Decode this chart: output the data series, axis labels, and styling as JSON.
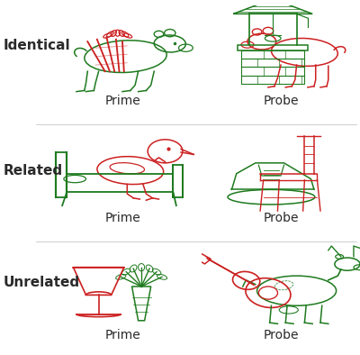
{
  "background_color": "#ffffff",
  "row_labels": [
    "Identical",
    "Related",
    "Unrelated"
  ],
  "row_label_fontsize": 11,
  "row_label_fontweight": "bold",
  "col_labels": [
    "Prime",
    "Probe"
  ],
  "col_label_fontsize": 10,
  "green_color": "#1e7a1e",
  "red_color": "#cc2020",
  "text_color": "#2a2a2a",
  "figsize": [
    4.0,
    3.94
  ],
  "dpi": 100,
  "cell_positions": {
    "r0c0": [
      0.12,
      0.685,
      0.44,
      0.3
    ],
    "r0c1": [
      0.56,
      0.685,
      0.44,
      0.3
    ],
    "r1c0": [
      0.12,
      0.355,
      0.44,
      0.3
    ],
    "r1c1": [
      0.56,
      0.355,
      0.44,
      0.3
    ],
    "r2c0": [
      0.12,
      0.025,
      0.44,
      0.3
    ],
    "r2c1": [
      0.56,
      0.025,
      0.44,
      0.3
    ]
  }
}
